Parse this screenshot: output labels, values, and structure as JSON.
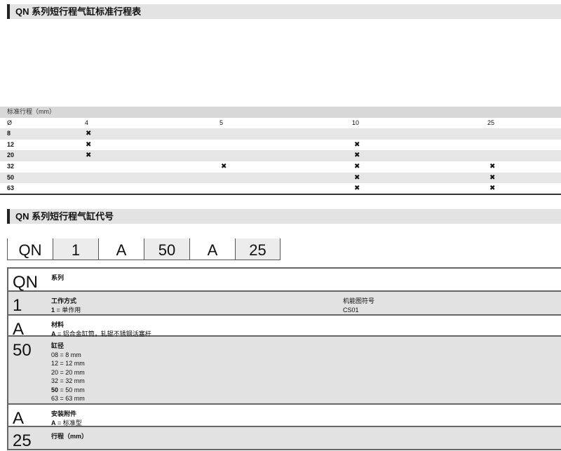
{
  "section1": {
    "title": "QN 系列短行程气缸标准行程表"
  },
  "stroke_table": {
    "caption": "标准行程（mm）",
    "header": [
      "Ø",
      "4",
      "5",
      "10",
      "25"
    ],
    "mark": "✖",
    "rows": [
      {
        "bore": "8",
        "marks": [
          true,
          false,
          false,
          false
        ]
      },
      {
        "bore": "12",
        "marks": [
          true,
          false,
          true,
          false
        ]
      },
      {
        "bore": "20",
        "marks": [
          true,
          false,
          true,
          false
        ]
      },
      {
        "bore": "32",
        "marks": [
          false,
          true,
          true,
          true
        ]
      },
      {
        "bore": "50",
        "marks": [
          false,
          false,
          true,
          true
        ]
      },
      {
        "bore": "63",
        "marks": [
          false,
          false,
          true,
          true
        ]
      }
    ]
  },
  "section2": {
    "title": "QN 系列短行程气缸代号"
  },
  "code": [
    "QN",
    "1",
    "A",
    "50",
    "A",
    "25"
  ],
  "spec": [
    {
      "code": "QN",
      "title": "系列",
      "lines": []
    },
    {
      "code": "1",
      "title": "工作方式",
      "lines": [
        [
          "1",
          " = 单作用"
        ]
      ],
      "right_title": "机能图符号",
      "right_value": "CS01"
    },
    {
      "code": "A",
      "title": "材料",
      "lines": [
        [
          "A",
          " = 铝合金缸筒，轧辊不锈钢活塞杆"
        ]
      ]
    },
    {
      "code": "50",
      "title": "缸径",
      "lines": [
        [
          "",
          "08 = 8 mm"
        ],
        [
          "",
          "12 = 12 mm"
        ],
        [
          "",
          "20 = 20 mm"
        ],
        [
          "",
          "32 = 32 mm"
        ],
        [
          "50",
          " = 50 mm"
        ],
        [
          "",
          "63 = 63 mm"
        ]
      ]
    },
    {
      "code": "A",
      "title": "安装附件",
      "lines": [
        [
          "A",
          " = 标准型"
        ]
      ]
    },
    {
      "code": "25",
      "title": "行程（mm）",
      "lines": []
    }
  ]
}
